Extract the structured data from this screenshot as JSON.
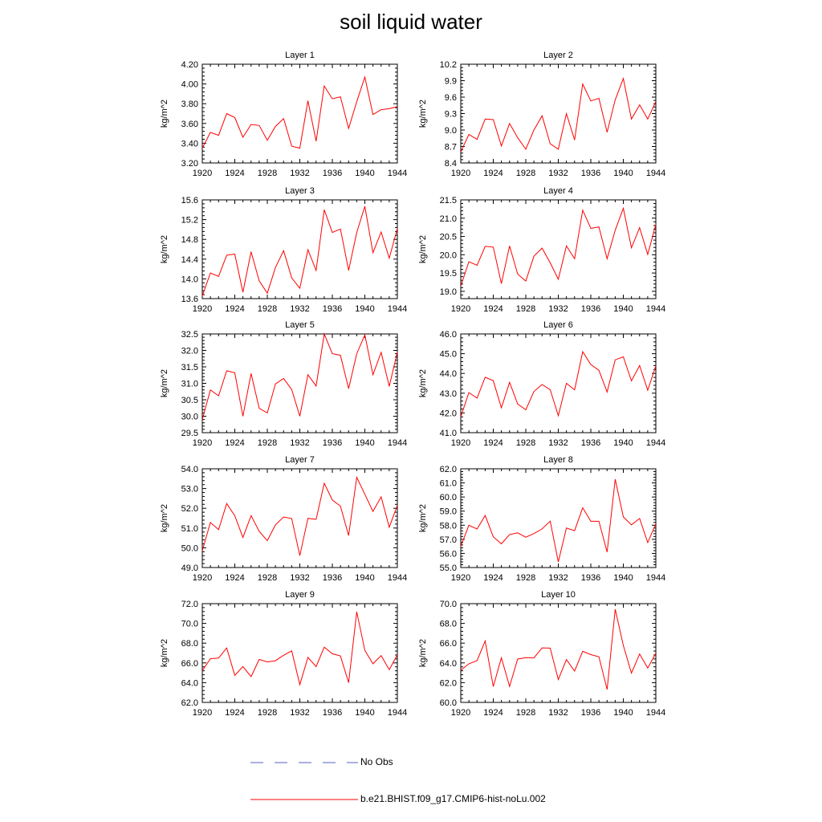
{
  "title": "soil liquid water",
  "legend": [
    {
      "label": "No Obs",
      "color": "#5560c0",
      "dash": "dashed"
    },
    {
      "label": "b.e21.BHIST.f09_g17.CMIP6-hist-noLu.002",
      "color": "#ff0000",
      "dash": "solid"
    }
  ],
  "chart_data": [
    {
      "type": "line",
      "title": "Layer 1",
      "ylabel": "kg/m^2",
      "xlim": [
        1920,
        1944
      ],
      "ylim": [
        3.2,
        4.2
      ],
      "x_ticks": [
        1920,
        1924,
        1928,
        1932,
        1936,
        1940,
        1944
      ],
      "y_ticks": [
        "3.20",
        "3.40",
        "3.60",
        "3.80",
        "4.00",
        "4.20"
      ],
      "grid": false,
      "series": [
        {
          "color": "#ff0000",
          "values": [
            3.35,
            3.51,
            3.48,
            3.7,
            3.66,
            3.46,
            3.59,
            3.58,
            3.43,
            3.57,
            3.65,
            3.37,
            3.35,
            3.83,
            3.42,
            3.98,
            3.85,
            3.87,
            3.55,
            3.82,
            4.07,
            3.69,
            3.74,
            3.75,
            3.77
          ]
        }
      ]
    },
    {
      "type": "line",
      "title": "Layer 2",
      "ylabel": "kg/m^2",
      "xlim": [
        1920,
        1944
      ],
      "ylim": [
        8.4,
        10.2
      ],
      "x_ticks": [
        1920,
        1924,
        1928,
        1932,
        1936,
        1940,
        1944
      ],
      "y_ticks": [
        "8.4",
        "8.7",
        "9.0",
        "9.3",
        "9.6",
        "9.9",
        "10.2"
      ],
      "grid": false,
      "series": [
        {
          "color": "#ff0000",
          "values": [
            8.6,
            8.92,
            8.83,
            9.2,
            9.19,
            8.71,
            9.12,
            8.86,
            8.65,
            9.0,
            9.26,
            8.75,
            8.65,
            9.3,
            8.82,
            9.84,
            9.53,
            9.58,
            8.96,
            9.55,
            9.94,
            9.2,
            9.46,
            9.2,
            9.52
          ]
        }
      ]
    },
    {
      "type": "line",
      "title": "Layer 3",
      "ylabel": "kg/m^2",
      "xlim": [
        1920,
        1944
      ],
      "ylim": [
        13.6,
        15.6
      ],
      "x_ticks": [
        1920,
        1924,
        1928,
        1932,
        1936,
        1940,
        1944
      ],
      "y_ticks": [
        "13.6",
        "14.0",
        "14.4",
        "14.8",
        "15.2",
        "15.6"
      ],
      "grid": false,
      "series": [
        {
          "color": "#ff0000",
          "values": [
            13.65,
            14.12,
            14.05,
            14.48,
            14.5,
            13.73,
            14.55,
            13.96,
            13.71,
            14.23,
            14.57,
            14.02,
            13.81,
            14.59,
            14.17,
            15.4,
            14.94,
            15.01,
            14.17,
            14.94,
            15.47,
            14.53,
            14.95,
            14.42,
            15.02
          ]
        }
      ]
    },
    {
      "type": "line",
      "title": "Layer 4",
      "ylabel": "kg/m^2",
      "xlim": [
        1920,
        1944
      ],
      "ylim": [
        18.8,
        21.5
      ],
      "x_ticks": [
        1920,
        1924,
        1928,
        1932,
        1936,
        1940,
        1944
      ],
      "y_ticks": [
        "19.0",
        "19.5",
        "20.0",
        "20.5",
        "21.0",
        "21.5"
      ],
      "grid": false,
      "series": [
        {
          "color": "#ff0000",
          "values": [
            19.14,
            19.81,
            19.71,
            20.23,
            20.21,
            19.21,
            20.24,
            19.47,
            19.28,
            19.96,
            20.18,
            19.78,
            19.33,
            20.24,
            19.89,
            21.22,
            20.72,
            20.76,
            19.89,
            20.67,
            21.27,
            20.19,
            20.74,
            20.01,
            20.83
          ]
        }
      ]
    },
    {
      "type": "line",
      "title": "Layer 5",
      "ylabel": "kg/m^2",
      "xlim": [
        1920,
        1944
      ],
      "ylim": [
        29.5,
        32.5
      ],
      "x_ticks": [
        1920,
        1924,
        1928,
        1932,
        1936,
        1940,
        1944
      ],
      "y_ticks": [
        "29.5",
        "30.0",
        "30.5",
        "31.0",
        "31.5",
        "32.0",
        "32.5"
      ],
      "grid": false,
      "series": [
        {
          "color": "#ff0000",
          "values": [
            29.9,
            30.8,
            30.62,
            31.38,
            31.32,
            30.0,
            31.3,
            30.24,
            30.1,
            30.98,
            31.15,
            30.81,
            30.0,
            31.26,
            30.92,
            32.5,
            31.9,
            31.85,
            30.84,
            31.9,
            32.47,
            31.26,
            31.94,
            30.91,
            31.95
          ]
        }
      ]
    },
    {
      "type": "line",
      "title": "Layer 6",
      "ylabel": "kg/m^2",
      "xlim": [
        1920,
        1944
      ],
      "ylim": [
        41.0,
        46.0
      ],
      "x_ticks": [
        1920,
        1924,
        1928,
        1932,
        1936,
        1940,
        1944
      ],
      "y_ticks": [
        "41.0",
        "42.0",
        "43.0",
        "44.0",
        "45.0",
        "46.0"
      ],
      "grid": false,
      "series": [
        {
          "color": "#ff0000",
          "values": [
            41.8,
            43.03,
            42.75,
            43.81,
            43.63,
            42.26,
            43.55,
            42.45,
            42.16,
            43.08,
            43.44,
            43.18,
            41.86,
            43.5,
            43.17,
            45.1,
            44.45,
            44.16,
            43.06,
            44.69,
            44.84,
            43.62,
            44.4,
            43.15,
            44.39
          ]
        }
      ]
    },
    {
      "type": "line",
      "title": "Layer 7",
      "ylabel": "kg/m^2",
      "xlim": [
        1920,
        1944
      ],
      "ylim": [
        49.0,
        54.0
      ],
      "x_ticks": [
        1920,
        1924,
        1928,
        1932,
        1936,
        1940,
        1944
      ],
      "y_ticks": [
        "49.0",
        "50.0",
        "51.0",
        "52.0",
        "53.0",
        "54.0"
      ],
      "grid": false,
      "series": [
        {
          "color": "#ff0000",
          "values": [
            49.85,
            51.28,
            50.92,
            52.24,
            51.62,
            50.52,
            51.63,
            50.83,
            50.36,
            51.16,
            51.56,
            51.48,
            49.6,
            51.49,
            51.44,
            53.27,
            52.42,
            52.11,
            50.62,
            53.57,
            52.71,
            51.84,
            52.58,
            51.04,
            52.15
          ]
        }
      ]
    },
    {
      "type": "line",
      "title": "Layer 8",
      "ylabel": "kg/m^2",
      "xlim": [
        1920,
        1944
      ],
      "ylim": [
        55.0,
        62.0
      ],
      "x_ticks": [
        1920,
        1924,
        1928,
        1932,
        1936,
        1940,
        1944
      ],
      "y_ticks": [
        "55.0",
        "56.0",
        "57.0",
        "58.0",
        "59.0",
        "60.0",
        "61.0",
        "62.0"
      ],
      "grid": false,
      "series": [
        {
          "color": "#ff0000",
          "values": [
            56.5,
            58.0,
            57.73,
            58.69,
            57.18,
            56.68,
            57.34,
            57.46,
            57.15,
            57.41,
            57.74,
            58.29,
            55.4,
            57.8,
            57.61,
            59.24,
            58.28,
            58.28,
            56.1,
            61.26,
            58.59,
            58.03,
            58.48,
            56.77,
            58.11
          ]
        }
      ]
    },
    {
      "type": "line",
      "title": "Layer 9",
      "ylabel": "kg/m^2",
      "xlim": [
        1920,
        1944
      ],
      "ylim": [
        62.0,
        72.0
      ],
      "x_ticks": [
        1920,
        1924,
        1928,
        1932,
        1936,
        1940,
        1944
      ],
      "y_ticks": [
        "62.0",
        "64.0",
        "66.0",
        "68.0",
        "70.0",
        "72.0"
      ],
      "grid": false,
      "series": [
        {
          "color": "#ff0000",
          "values": [
            65.2,
            66.42,
            66.49,
            67.51,
            64.73,
            65.63,
            64.61,
            66.35,
            66.1,
            66.22,
            66.77,
            67.22,
            63.8,
            66.56,
            65.63,
            67.59,
            66.93,
            66.7,
            64.0,
            71.17,
            67.27,
            65.91,
            66.74,
            65.32,
            66.83
          ]
        }
      ]
    },
    {
      "type": "line",
      "title": "Layer 10",
      "ylabel": "kg/m^2",
      "xlim": [
        1920,
        1944
      ],
      "ylim": [
        60.0,
        70.0
      ],
      "x_ticks": [
        1920,
        1924,
        1928,
        1932,
        1936,
        1940,
        1944
      ],
      "y_ticks": [
        "60.0",
        "62.0",
        "64.0",
        "66.0",
        "68.0",
        "70.0"
      ],
      "grid": false,
      "series": [
        {
          "color": "#ff0000",
          "values": [
            63.25,
            63.91,
            64.23,
            66.23,
            61.6,
            64.51,
            61.62,
            64.39,
            64.54,
            64.5,
            65.52,
            65.5,
            62.32,
            64.33,
            63.17,
            65.18,
            64.84,
            64.63,
            61.31,
            69.44,
            65.77,
            62.97,
            64.9,
            63.48,
            64.98
          ]
        }
      ]
    }
  ]
}
